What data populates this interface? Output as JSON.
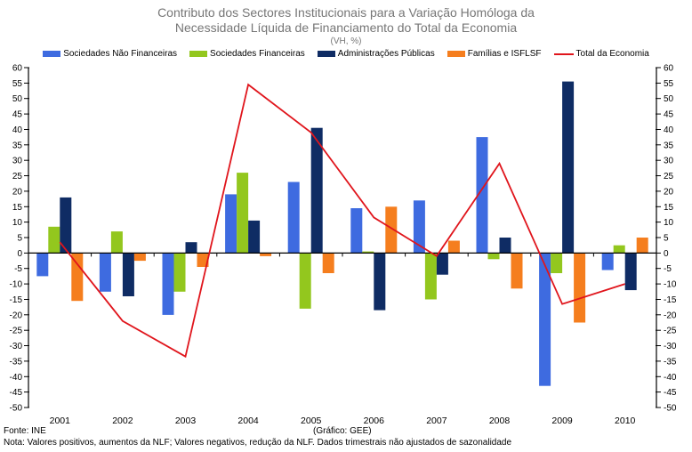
{
  "header": {
    "line1": "Contributo dos Sectores Institucionais para a Variação Homóloga da",
    "line2": "Necessidade Líquida de Financiamento do Total da Economia",
    "subtitle": "(VH, %)"
  },
  "chart_data": {
    "type": "bar",
    "title": "Contributo dos Sectores Institucionais para a Variação Homóloga da Necessidade Líquida de Financiamento do Total da Economia",
    "subtitle": "(VH, %)",
    "categories": [
      "2001",
      "2002",
      "2003",
      "2004",
      "2005",
      "2006",
      "2007",
      "2008",
      "2009",
      "2010"
    ],
    "series": [
      {
        "name": "Sociedades Não Financeiras",
        "type": "bar",
        "color": "#3E6BE0",
        "values": [
          -7.5,
          -12.5,
          -20,
          19,
          23,
          14.5,
          17,
          37.5,
          -43,
          -5.5
        ]
      },
      {
        "name": "Sociedades Financeiras",
        "type": "bar",
        "color": "#93C71E",
        "values": [
          8.5,
          7,
          -12.5,
          26,
          -18,
          0.5,
          -15,
          -2,
          -6.5,
          2.5
        ]
      },
      {
        "name": "Administrações Públicas",
        "type": "bar",
        "color": "#0F2C64",
        "values": [
          18,
          -14,
          3.5,
          10.5,
          40.5,
          -18.5,
          -7,
          5,
          55.5,
          -12
        ]
      },
      {
        "name": "Famílias e ISFLSF",
        "type": "bar",
        "color": "#F57E1E",
        "values": [
          -15.5,
          -2.5,
          -4.5,
          -1,
          -6.5,
          15,
          4,
          -11.5,
          -22.5,
          5
        ]
      },
      {
        "name": "Total da Economia",
        "type": "line",
        "color": "#E0151C",
        "values": [
          3.5,
          -22,
          -33.5,
          54.5,
          39,
          11.5,
          -1,
          29,
          -16.5,
          -10
        ]
      }
    ],
    "ylim": [
      -50,
      60
    ],
    "ytick_step": 5,
    "grid": false,
    "legend_position": "top",
    "axes": {
      "left": true,
      "right": true,
      "axis_color": "#000000"
    },
    "xlabel": "",
    "ylabel": ""
  },
  "footer": {
    "source": "Fonte: INE",
    "credit": "(Gráfico: GEE)",
    "note": "Nota: Valores positivos, aumentos da NLF; Valores negativos, redução da NLF. Dados trimestrais não ajustados de sazonalidade"
  }
}
